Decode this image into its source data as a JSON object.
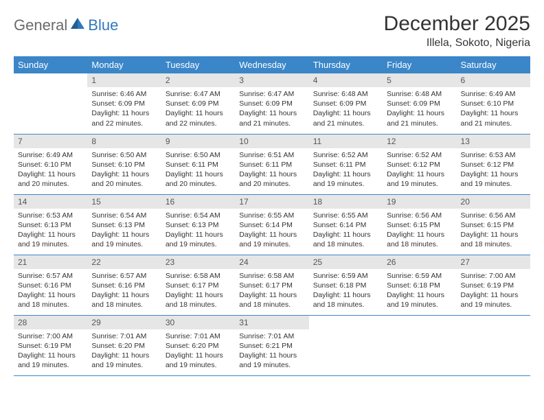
{
  "logo": {
    "text1": "General",
    "text2": "Blue"
  },
  "title": "December 2025",
  "location": "Illela, Sokoto, Nigeria",
  "colors": {
    "header_bg": "#3b86c8",
    "header_text": "#ffffff",
    "daynum_bg": "#e6e6e6",
    "row_border": "#3b86c8",
    "logo_gray": "#6b6b6b",
    "logo_blue": "#2f79bd",
    "body_text": "#333333"
  },
  "weekdays": [
    "Sunday",
    "Monday",
    "Tuesday",
    "Wednesday",
    "Thursday",
    "Friday",
    "Saturday"
  ],
  "weeks": [
    [
      {
        "blank": true
      },
      {
        "n": "1",
        "sr": "Sunrise: 6:46 AM",
        "ss": "Sunset: 6:09 PM",
        "d1": "Daylight: 11 hours",
        "d2": "and 22 minutes."
      },
      {
        "n": "2",
        "sr": "Sunrise: 6:47 AM",
        "ss": "Sunset: 6:09 PM",
        "d1": "Daylight: 11 hours",
        "d2": "and 22 minutes."
      },
      {
        "n": "3",
        "sr": "Sunrise: 6:47 AM",
        "ss": "Sunset: 6:09 PM",
        "d1": "Daylight: 11 hours",
        "d2": "and 21 minutes."
      },
      {
        "n": "4",
        "sr": "Sunrise: 6:48 AM",
        "ss": "Sunset: 6:09 PM",
        "d1": "Daylight: 11 hours",
        "d2": "and 21 minutes."
      },
      {
        "n": "5",
        "sr": "Sunrise: 6:48 AM",
        "ss": "Sunset: 6:09 PM",
        "d1": "Daylight: 11 hours",
        "d2": "and 21 minutes."
      },
      {
        "n": "6",
        "sr": "Sunrise: 6:49 AM",
        "ss": "Sunset: 6:10 PM",
        "d1": "Daylight: 11 hours",
        "d2": "and 21 minutes."
      }
    ],
    [
      {
        "n": "7",
        "sr": "Sunrise: 6:49 AM",
        "ss": "Sunset: 6:10 PM",
        "d1": "Daylight: 11 hours",
        "d2": "and 20 minutes."
      },
      {
        "n": "8",
        "sr": "Sunrise: 6:50 AM",
        "ss": "Sunset: 6:10 PM",
        "d1": "Daylight: 11 hours",
        "d2": "and 20 minutes."
      },
      {
        "n": "9",
        "sr": "Sunrise: 6:50 AM",
        "ss": "Sunset: 6:11 PM",
        "d1": "Daylight: 11 hours",
        "d2": "and 20 minutes."
      },
      {
        "n": "10",
        "sr": "Sunrise: 6:51 AM",
        "ss": "Sunset: 6:11 PM",
        "d1": "Daylight: 11 hours",
        "d2": "and 20 minutes."
      },
      {
        "n": "11",
        "sr": "Sunrise: 6:52 AM",
        "ss": "Sunset: 6:11 PM",
        "d1": "Daylight: 11 hours",
        "d2": "and 19 minutes."
      },
      {
        "n": "12",
        "sr": "Sunrise: 6:52 AM",
        "ss": "Sunset: 6:12 PM",
        "d1": "Daylight: 11 hours",
        "d2": "and 19 minutes."
      },
      {
        "n": "13",
        "sr": "Sunrise: 6:53 AM",
        "ss": "Sunset: 6:12 PM",
        "d1": "Daylight: 11 hours",
        "d2": "and 19 minutes."
      }
    ],
    [
      {
        "n": "14",
        "sr": "Sunrise: 6:53 AM",
        "ss": "Sunset: 6:13 PM",
        "d1": "Daylight: 11 hours",
        "d2": "and 19 minutes."
      },
      {
        "n": "15",
        "sr": "Sunrise: 6:54 AM",
        "ss": "Sunset: 6:13 PM",
        "d1": "Daylight: 11 hours",
        "d2": "and 19 minutes."
      },
      {
        "n": "16",
        "sr": "Sunrise: 6:54 AM",
        "ss": "Sunset: 6:13 PM",
        "d1": "Daylight: 11 hours",
        "d2": "and 19 minutes."
      },
      {
        "n": "17",
        "sr": "Sunrise: 6:55 AM",
        "ss": "Sunset: 6:14 PM",
        "d1": "Daylight: 11 hours",
        "d2": "and 19 minutes."
      },
      {
        "n": "18",
        "sr": "Sunrise: 6:55 AM",
        "ss": "Sunset: 6:14 PM",
        "d1": "Daylight: 11 hours",
        "d2": "and 18 minutes."
      },
      {
        "n": "19",
        "sr": "Sunrise: 6:56 AM",
        "ss": "Sunset: 6:15 PM",
        "d1": "Daylight: 11 hours",
        "d2": "and 18 minutes."
      },
      {
        "n": "20",
        "sr": "Sunrise: 6:56 AM",
        "ss": "Sunset: 6:15 PM",
        "d1": "Daylight: 11 hours",
        "d2": "and 18 minutes."
      }
    ],
    [
      {
        "n": "21",
        "sr": "Sunrise: 6:57 AM",
        "ss": "Sunset: 6:16 PM",
        "d1": "Daylight: 11 hours",
        "d2": "and 18 minutes."
      },
      {
        "n": "22",
        "sr": "Sunrise: 6:57 AM",
        "ss": "Sunset: 6:16 PM",
        "d1": "Daylight: 11 hours",
        "d2": "and 18 minutes."
      },
      {
        "n": "23",
        "sr": "Sunrise: 6:58 AM",
        "ss": "Sunset: 6:17 PM",
        "d1": "Daylight: 11 hours",
        "d2": "and 18 minutes."
      },
      {
        "n": "24",
        "sr": "Sunrise: 6:58 AM",
        "ss": "Sunset: 6:17 PM",
        "d1": "Daylight: 11 hours",
        "d2": "and 18 minutes."
      },
      {
        "n": "25",
        "sr": "Sunrise: 6:59 AM",
        "ss": "Sunset: 6:18 PM",
        "d1": "Daylight: 11 hours",
        "d2": "and 18 minutes."
      },
      {
        "n": "26",
        "sr": "Sunrise: 6:59 AM",
        "ss": "Sunset: 6:18 PM",
        "d1": "Daylight: 11 hours",
        "d2": "and 19 minutes."
      },
      {
        "n": "27",
        "sr": "Sunrise: 7:00 AM",
        "ss": "Sunset: 6:19 PM",
        "d1": "Daylight: 11 hours",
        "d2": "and 19 minutes."
      }
    ],
    [
      {
        "n": "28",
        "sr": "Sunrise: 7:00 AM",
        "ss": "Sunset: 6:19 PM",
        "d1": "Daylight: 11 hours",
        "d2": "and 19 minutes."
      },
      {
        "n": "29",
        "sr": "Sunrise: 7:01 AM",
        "ss": "Sunset: 6:20 PM",
        "d1": "Daylight: 11 hours",
        "d2": "and 19 minutes."
      },
      {
        "n": "30",
        "sr": "Sunrise: 7:01 AM",
        "ss": "Sunset: 6:20 PM",
        "d1": "Daylight: 11 hours",
        "d2": "and 19 minutes."
      },
      {
        "n": "31",
        "sr": "Sunrise: 7:01 AM",
        "ss": "Sunset: 6:21 PM",
        "d1": "Daylight: 11 hours",
        "d2": "and 19 minutes."
      },
      {
        "blank": true
      },
      {
        "blank": true
      },
      {
        "blank": true
      }
    ]
  ]
}
